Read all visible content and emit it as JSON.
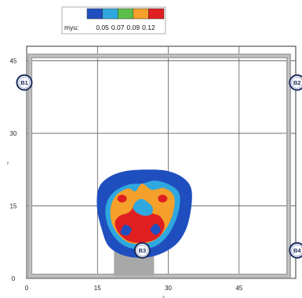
{
  "chart_data": {
    "type": "heatmap",
    "legend": {
      "title": "myu:",
      "ticks": [
        "0.05",
        "0.07",
        "0.09",
        "0.12"
      ],
      "colors": [
        "#1f4fbf",
        "#2fa8e0",
        "#5cbf4a",
        "#f5a02a",
        "#e02020"
      ],
      "placement": "top-left"
    },
    "xlim": [
      0,
      57
    ],
    "ylim": [
      0,
      48
    ],
    "x_ticks": [
      "0",
      "15",
      "30",
      "45"
    ],
    "y_ticks": [
      "0",
      "15",
      "30",
      "45"
    ],
    "xlabel": "x",
    "ylabel": "y",
    "grid": true,
    "markers": [
      {
        "label": "B1",
        "x": -0.5,
        "y": 40.5
      },
      {
        "label": "B2",
        "x": 57.3,
        "y": 40.5
      },
      {
        "label": "B3",
        "x": 24.5,
        "y": 5.8
      },
      {
        "label": "B4",
        "x": 57.3,
        "y": 5.8
      }
    ],
    "frame": {
      "x0": 0.7,
      "x1": 55.5,
      "y0": 0.5,
      "y1": 46
    },
    "pillar": {
      "x0": 18.5,
      "x1": 27,
      "y0": 0.5,
      "y1": 6
    },
    "contours": [
      {
        "level": "0.05",
        "color": "#1f4fbf",
        "points": [
          [
            26.5,
            22.5
          ],
          [
            30.3,
            22.1
          ],
          [
            33.3,
            20.7
          ],
          [
            34.9,
            18.4
          ],
          [
            34.8,
            14.2
          ],
          [
            33.6,
            9.8
          ],
          [
            31.0,
            6.5
          ],
          [
            26.5,
            4.5
          ],
          [
            21.5,
            4.5
          ],
          [
            17.5,
            6.5
          ],
          [
            15.8,
            10.5
          ],
          [
            14.9,
            14.7
          ],
          [
            15.2,
            18.5
          ],
          [
            17.2,
            20.8
          ],
          [
            21.0,
            22.2
          ]
        ]
      },
      {
        "level": "0.07",
        "color": "#2fa8e0",
        "points": [
          [
            27.0,
            20.2
          ],
          [
            30.0,
            19.5
          ],
          [
            32.2,
            17.8
          ],
          [
            32.4,
            15.0
          ],
          [
            31.3,
            11.3
          ],
          [
            29.2,
            8.1
          ],
          [
            26.2,
            6.3
          ],
          [
            21.8,
            6.3
          ],
          [
            18.8,
            8.3
          ],
          [
            17.0,
            11.6
          ],
          [
            16.8,
            15.1
          ],
          [
            18.4,
            17.8
          ],
          [
            21.6,
            19.4
          ],
          [
            24.5,
            19.6
          ]
        ]
      },
      {
        "level": "0.09",
        "color": "#f5a02a",
        "points": [
          [
            24.5,
            19.6
          ],
          [
            26.5,
            18.3
          ],
          [
            29.0,
            18.7
          ],
          [
            31.0,
            17.4
          ],
          [
            31.3,
            15.0
          ],
          [
            30.3,
            11.6
          ],
          [
            28.2,
            8.7
          ],
          [
            25.5,
            7.3
          ],
          [
            22.0,
            7.3
          ],
          [
            19.6,
            8.9
          ],
          [
            18.0,
            11.6
          ],
          [
            17.8,
            14.7
          ],
          [
            19.0,
            17.2
          ],
          [
            21.5,
            18.6
          ],
          [
            23.0,
            18.0
          ]
        ]
      },
      {
        "level": "0.12",
        "color": "#e02020",
        "points": [
          [
            23.0,
            15.6
          ],
          [
            24.5,
            16.0
          ],
          [
            25.4,
            14.4
          ],
          [
            26.5,
            13.5
          ],
          [
            28.3,
            12.8
          ],
          [
            29.2,
            10.8
          ],
          [
            28.0,
            8.6
          ],
          [
            25.5,
            7.5
          ],
          [
            22.2,
            7.5
          ],
          [
            19.9,
            8.9
          ],
          [
            18.7,
            11.2
          ],
          [
            19.5,
            12.8
          ],
          [
            21.5,
            13.6
          ],
          [
            22.4,
            14.5
          ]
        ]
      }
    ],
    "hotspots": [
      {
        "level": "0.12",
        "color": "#e02020",
        "x": 20.2,
        "y": 16.5
      },
      {
        "level": "0.12",
        "color": "#e02020",
        "x": 28.8,
        "y": 16.5
      }
    ],
    "inner_blue": [
      {
        "level": "0.05",
        "color": "#1f4fbf",
        "points": [
          [
            20.8,
            11.1
          ],
          [
            22.2,
            10.2
          ],
          [
            21.4,
            8.9
          ],
          [
            19.9,
            9.4
          ]
        ]
      },
      {
        "level": "0.05",
        "color": "#1f4fbf",
        "points": [
          [
            27.4,
            11.3
          ],
          [
            28.4,
            10.0
          ],
          [
            27.3,
            9.0
          ],
          [
            26.2,
            10.1
          ]
        ]
      }
    ],
    "light_blob": [
      {
        "level": "0.07",
        "color": "#2fa8e0",
        "points": [
          [
            24.6,
            16.4
          ],
          [
            26.6,
            14.8
          ],
          [
            26.3,
            13.2
          ],
          [
            24.3,
            13.1
          ],
          [
            22.6,
            14.3
          ],
          [
            23.1,
            15.8
          ]
        ]
      }
    ]
  }
}
